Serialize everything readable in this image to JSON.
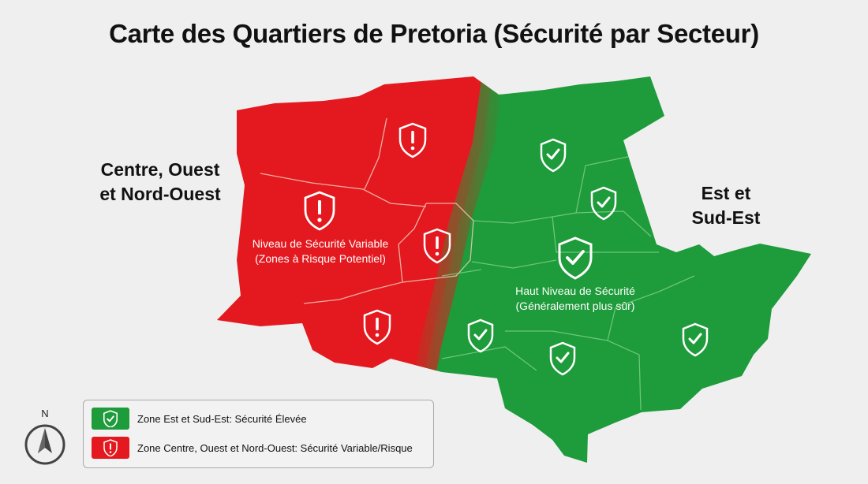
{
  "title": "Carte des Quartiers de Pretoria (Sécurité par Secteur)",
  "regions": {
    "west": {
      "label_line1": "Centre, Ouest",
      "label_line2": "et Nord-Ouest",
      "zone_line1": "Niveau de Sécurité Variable",
      "zone_line2": "(Zones à Risque Potentiel)",
      "color": "#e3191f",
      "icon": "warning-shield-icon"
    },
    "east": {
      "label_line1": "Est et",
      "label_line2": "Sud-Est",
      "zone_line1": "Haut Niveau de Sécurité",
      "zone_line2": "(Généralement plus sûr)",
      "color": "#1e9b3a",
      "icon": "check-shield-icon"
    }
  },
  "legend": {
    "items": [
      {
        "label": "Zone Est et Sud-Est: Sécurité Élevée",
        "color": "#1e9b3a",
        "icon": "check-shield-icon"
      },
      {
        "label": "Zone Centre, Ouest et Nord-Ouest: Sécurité Variable/Risque",
        "color": "#e3191f",
        "icon": "warning-shield-icon"
      }
    ]
  },
  "compass": {
    "north_label": "N"
  }
}
